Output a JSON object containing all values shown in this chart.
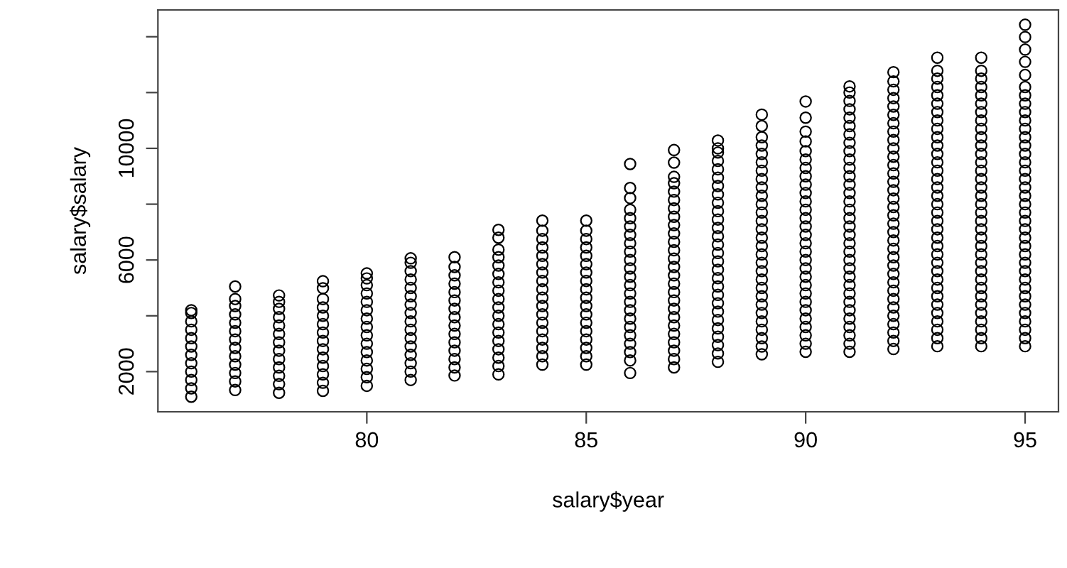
{
  "chart_data": {
    "type": "scatter",
    "xlabel": "salary$year",
    "ylabel": "salary$salary",
    "marker": "circle",
    "grid": false,
    "xlim": [
      75.24,
      95.76
    ],
    "xticks": [
      80,
      85,
      90,
      95
    ],
    "ylim": [
      560,
      14960
    ],
    "yticks": [
      2000,
      {
        "value": 4000,
        "label": null
      },
      6000,
      {
        "value": 8000,
        "label": null
      },
      10000,
      {
        "value": 12000,
        "label": null
      },
      {
        "value": 14000,
        "label": null
      }
    ],
    "series": [
      {
        "color": "#000000",
        "x": [
          76,
          76,
          76,
          76,
          76,
          76,
          76,
          76,
          76,
          76,
          76,
          76
        ],
        "values": [
          1100,
          1400,
          1700,
          2000,
          2300,
          2600,
          2900,
          3200,
          3500,
          3800,
          4100,
          4200
        ]
      },
      {
        "color": "#000000",
        "x": [
          77,
          77,
          77,
          77,
          77,
          77,
          77,
          77,
          77,
          77,
          77,
          77,
          77
        ],
        "values": [
          1340,
          1650,
          1950,
          2250,
          2550,
          2850,
          3150,
          3450,
          3750,
          4050,
          4350,
          4600,
          5050
        ]
      },
      {
        "color": "#000000",
        "x": [
          78,
          78,
          78,
          78,
          78,
          78,
          78,
          78,
          78,
          78,
          78,
          78,
          78
        ],
        "values": [
          1240,
          1550,
          1850,
          2150,
          2450,
          2750,
          3050,
          3350,
          3650,
          3950,
          4250,
          4500,
          4730
        ]
      },
      {
        "color": "#000000",
        "x": [
          79,
          79,
          79,
          79,
          79,
          79,
          79,
          79,
          79,
          79,
          79,
          79,
          79,
          79
        ],
        "values": [
          1310,
          1600,
          1900,
          2200,
          2500,
          2800,
          3100,
          3400,
          3700,
          4000,
          4300,
          4600,
          4990,
          5240
        ]
      },
      {
        "color": "#000000",
        "x": [
          80,
          80,
          80,
          80,
          80,
          80,
          80,
          80,
          80,
          80,
          80,
          80,
          80,
          80,
          80
        ],
        "values": [
          1490,
          1800,
          2100,
          2400,
          2700,
          3000,
          3300,
          3600,
          3900,
          4200,
          4500,
          4800,
          5100,
          5340,
          5520
        ]
      },
      {
        "color": "#000000",
        "x": [
          81,
          81,
          81,
          81,
          81,
          81,
          81,
          81,
          81,
          81,
          81,
          81,
          81,
          81,
          81,
          81
        ],
        "values": [
          1700,
          2000,
          2300,
          2600,
          2900,
          3200,
          3500,
          3800,
          4100,
          4400,
          4700,
          5000,
          5300,
          5600,
          5900,
          6060
        ]
      },
      {
        "color": "#000000",
        "x": [
          82,
          82,
          82,
          82,
          82,
          82,
          82,
          82,
          82,
          82,
          82,
          82,
          82,
          82,
          82
        ],
        "values": [
          1860,
          2150,
          2450,
          2750,
          3050,
          3350,
          3650,
          3950,
          4250,
          4550,
          4850,
          5150,
          5450,
          5750,
          6100
        ]
      },
      {
        "color": "#000000",
        "x": [
          83,
          83,
          83,
          83,
          83,
          83,
          83,
          83,
          83,
          83,
          83,
          83,
          83,
          83,
          83,
          83,
          83,
          83
        ],
        "values": [
          1900,
          2200,
          2500,
          2800,
          3100,
          3400,
          3700,
          4000,
          4300,
          4600,
          4900,
          5200,
          5500,
          5800,
          6100,
          6370,
          6800,
          7080
        ]
      },
      {
        "color": "#000000",
        "x": [
          84,
          84,
          84,
          84,
          84,
          84,
          84,
          84,
          84,
          84,
          84,
          84,
          84,
          84,
          84,
          84,
          84,
          84
        ],
        "values": [
          2250,
          2550,
          2850,
          3150,
          3450,
          3750,
          4050,
          4350,
          4650,
          4950,
          5250,
          5550,
          5850,
          6150,
          6450,
          6750,
          7050,
          7410
        ]
      },
      {
        "color": "#000000",
        "x": [
          85,
          85,
          85,
          85,
          85,
          85,
          85,
          85,
          85,
          85,
          85,
          85,
          85,
          85,
          85,
          85,
          85,
          85
        ],
        "values": [
          2250,
          2550,
          2850,
          3150,
          3450,
          3750,
          4050,
          4350,
          4650,
          4950,
          5250,
          5550,
          5850,
          6150,
          6450,
          6750,
          7050,
          7410
        ]
      },
      {
        "color": "#000000",
        "x": [
          86,
          86,
          86,
          86,
          86,
          86,
          86,
          86,
          86,
          86,
          86,
          86,
          86,
          86,
          86,
          86,
          86,
          86,
          86,
          86,
          86,
          86,
          86
        ],
        "values": [
          1950,
          2400,
          2700,
          3000,
          3300,
          3600,
          3900,
          4200,
          4500,
          4800,
          5100,
          5400,
          5700,
          6000,
          6300,
          6600,
          6900,
          7200,
          7500,
          7800,
          8220,
          8580,
          9440
        ]
      },
      {
        "color": "#000000",
        "x": [
          87,
          87,
          87,
          87,
          87,
          87,
          87,
          87,
          87,
          87,
          87,
          87,
          87,
          87,
          87,
          87,
          87,
          87,
          87,
          87,
          87,
          87,
          87,
          87,
          87,
          87
        ],
        "values": [
          2150,
          2450,
          2750,
          3050,
          3350,
          3650,
          3950,
          4250,
          4550,
          4850,
          5150,
          5450,
          5750,
          6050,
          6350,
          6650,
          6950,
          7250,
          7550,
          7850,
          8150,
          8450,
          8750,
          8980,
          9490,
          9940
        ]
      },
      {
        "color": "#000000",
        "x": [
          88,
          88,
          88,
          88,
          88,
          88,
          88,
          88,
          88,
          88,
          88,
          88,
          88,
          88,
          88,
          88,
          88,
          88,
          88,
          88,
          88,
          88,
          88,
          88,
          88,
          88,
          88,
          88
        ],
        "values": [
          2350,
          2650,
          2950,
          3250,
          3550,
          3850,
          4150,
          4450,
          4750,
          5050,
          5350,
          5650,
          5950,
          6250,
          6550,
          6850,
          7150,
          7450,
          7750,
          8050,
          8350,
          8650,
          8950,
          9250,
          9550,
          9850,
          10000,
          10280
        ]
      },
      {
        "color": "#000000",
        "x": [
          89,
          89,
          89,
          89,
          89,
          89,
          89,
          89,
          89,
          89,
          89,
          89,
          89,
          89,
          89,
          89,
          89,
          89,
          89,
          89,
          89,
          89,
          89,
          89,
          89,
          89,
          89,
          89,
          89
        ],
        "values": [
          2620,
          2900,
          3200,
          3500,
          3800,
          4100,
          4400,
          4700,
          5000,
          5300,
          5600,
          5900,
          6200,
          6500,
          6800,
          7100,
          7400,
          7700,
          8000,
          8300,
          8600,
          8900,
          9200,
          9500,
          9800,
          10100,
          10400,
          10800,
          11210
        ]
      },
      {
        "color": "#000000",
        "x": [
          90,
          90,
          90,
          90,
          90,
          90,
          90,
          90,
          90,
          90,
          90,
          90,
          90,
          90,
          90,
          90,
          90,
          90,
          90,
          90,
          90,
          90,
          90,
          90,
          90,
          90,
          90,
          90,
          90
        ],
        "values": [
          2710,
          3000,
          3300,
          3600,
          3900,
          4200,
          4500,
          4800,
          5100,
          5400,
          5700,
          6000,
          6300,
          6600,
          6900,
          7200,
          7500,
          7800,
          8100,
          8400,
          8700,
          9000,
          9300,
          9600,
          9900,
          10250,
          10600,
          11100,
          11680
        ]
      },
      {
        "color": "#000000",
        "x": [
          91,
          91,
          91,
          91,
          91,
          91,
          91,
          91,
          91,
          91,
          91,
          91,
          91,
          91,
          91,
          91,
          91,
          91,
          91,
          91,
          91,
          91,
          91,
          91,
          91,
          91,
          91,
          91,
          91,
          91,
          91,
          91,
          91
        ],
        "values": [
          2710,
          3000,
          3300,
          3600,
          3900,
          4200,
          4500,
          4800,
          5100,
          5400,
          5700,
          6000,
          6300,
          6600,
          6900,
          7200,
          7500,
          7800,
          8100,
          8400,
          8700,
          9000,
          9300,
          9600,
          9900,
          10200,
          10500,
          10800,
          11100,
          11400,
          11700,
          12000,
          12220
        ]
      },
      {
        "color": "#000000",
        "x": [
          92,
          92,
          92,
          92,
          92,
          92,
          92,
          92,
          92,
          92,
          92,
          92,
          92,
          92,
          92,
          92,
          92,
          92,
          92,
          92,
          92,
          92,
          92,
          92,
          92,
          92,
          92,
          92,
          92,
          92,
          92,
          92,
          92,
          92
        ],
        "values": [
          2810,
          3100,
          3400,
          3700,
          4000,
          4300,
          4600,
          4900,
          5200,
          5500,
          5800,
          6100,
          6400,
          6700,
          7000,
          7300,
          7600,
          7900,
          8200,
          8500,
          8800,
          9100,
          9400,
          9700,
          10000,
          10300,
          10600,
          10900,
          11200,
          11500,
          11800,
          12100,
          12400,
          12730
        ]
      },
      {
        "color": "#000000",
        "x": [
          93,
          93,
          93,
          93,
          93,
          93,
          93,
          93,
          93,
          93,
          93,
          93,
          93,
          93,
          93,
          93,
          93,
          93,
          93,
          93,
          93,
          93,
          93,
          93,
          93,
          93,
          93,
          93,
          93,
          93,
          93,
          93,
          93,
          93,
          93
        ],
        "values": [
          2910,
          3200,
          3500,
          3800,
          4100,
          4400,
          4700,
          5000,
          5300,
          5600,
          5900,
          6200,
          6500,
          6800,
          7100,
          7400,
          7700,
          8000,
          8300,
          8600,
          8900,
          9200,
          9500,
          9800,
          10100,
          10400,
          10700,
          11000,
          11300,
          11600,
          11900,
          12200,
          12500,
          12780,
          13250
        ]
      },
      {
        "color": "#000000",
        "x": [
          94,
          94,
          94,
          94,
          94,
          94,
          94,
          94,
          94,
          94,
          94,
          94,
          94,
          94,
          94,
          94,
          94,
          94,
          94,
          94,
          94,
          94,
          94,
          94,
          94,
          94,
          94,
          94,
          94,
          94,
          94,
          94,
          94,
          94,
          94
        ],
        "values": [
          2910,
          3200,
          3500,
          3800,
          4100,
          4400,
          4700,
          5000,
          5300,
          5600,
          5900,
          6200,
          6500,
          6800,
          7100,
          7400,
          7700,
          8000,
          8300,
          8600,
          8900,
          9200,
          9500,
          9800,
          10100,
          10400,
          10700,
          11000,
          11300,
          11600,
          11900,
          12200,
          12500,
          12780,
          13250
        ]
      },
      {
        "color": "#000000",
        "x": [
          95,
          95,
          95,
          95,
          95,
          95,
          95,
          95,
          95,
          95,
          95,
          95,
          95,
          95,
          95,
          95,
          95,
          95,
          95,
          95,
          95,
          95,
          95,
          95,
          95,
          95,
          95,
          95,
          95,
          95,
          95,
          95,
          95,
          95,
          95,
          95,
          95
        ],
        "values": [
          2910,
          3200,
          3500,
          3800,
          4100,
          4400,
          4700,
          5000,
          5300,
          5600,
          5900,
          6200,
          6500,
          6800,
          7100,
          7400,
          7700,
          8000,
          8300,
          8600,
          8900,
          9200,
          9500,
          9800,
          10100,
          10400,
          10700,
          11000,
          11300,
          11600,
          11900,
          12200,
          12630,
          13100,
          13540,
          13990,
          14430
        ]
      }
    ]
  }
}
